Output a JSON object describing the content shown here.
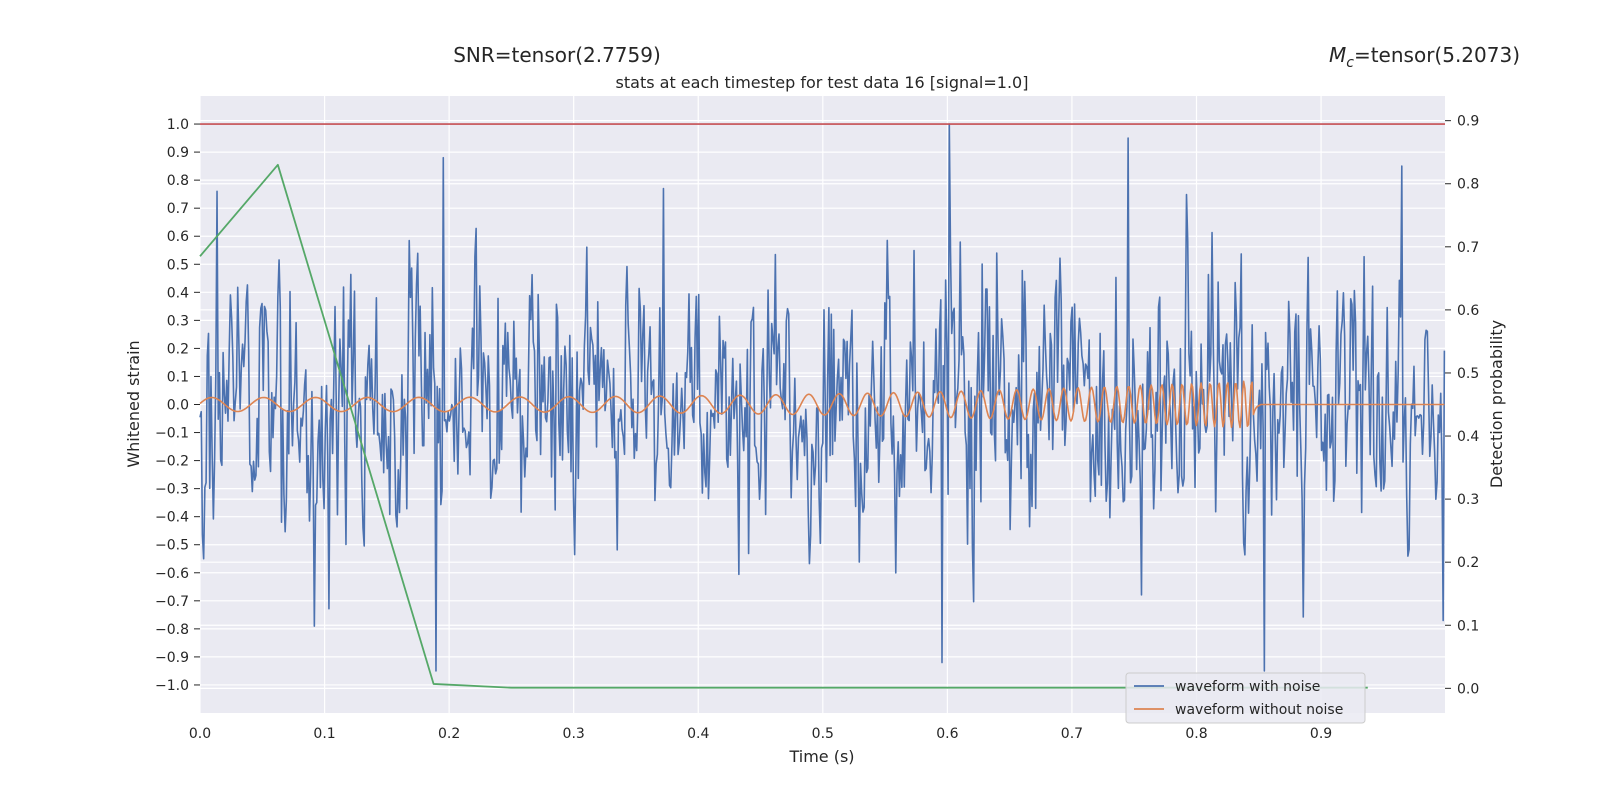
{
  "chart_data": {
    "type": "line",
    "header_left": "SNR=tensor(2.7759)",
    "header_right_symbol": "M",
    "header_right_sub": "c",
    "header_right_value": "=tensor(5.2073)",
    "title": "stats at each timestep for test data 16 [signal=1.0]",
    "xlabel": "Time (s)",
    "ylabel": "Whitened strain",
    "ylabel_right": "Detection probability",
    "xlim": [
      0,
      0.9995
    ],
    "ylim": [
      -1.1,
      1.1
    ],
    "ylim_right": [
      -0.0391,
      0.9391
    ],
    "x_ticks": [
      "0.0",
      "0.1",
      "0.2",
      "0.3",
      "0.4",
      "0.5",
      "0.6",
      "0.7",
      "0.8",
      "0.9"
    ],
    "y_ticks": [
      "1.0",
      "0.9",
      "0.8",
      "0.7",
      "0.6",
      "0.5",
      "0.4",
      "0.3",
      "0.2",
      "0.1",
      "0.0",
      "−0.1",
      "−0.2",
      "−0.3",
      "−0.4",
      "−0.5",
      "−0.6",
      "−0.7",
      "−0.8",
      "−0.9",
      "−1.0"
    ],
    "y_ticks_right": [
      "0.9",
      "0.8",
      "0.7",
      "0.6",
      "0.5",
      "0.4",
      "0.3",
      "0.2",
      "0.1",
      "0.0"
    ],
    "grid": true,
    "legend_position": "bottom-right",
    "colors": {
      "background": "#eaeaf2",
      "grid": "#ffffff",
      "noisy": "#4c72b0",
      "clean": "#dd8452",
      "probability": "#55a868",
      "threshold": "#c44e52"
    },
    "series": [
      {
        "name": "waveform with noise",
        "axis": "left",
        "sample_count": 1024,
        "x_range": [
          0,
          0.999
        ],
        "amplitude_std": 0.33,
        "marked_peaks": [
          {
            "x": 0.003,
            "y": -0.55
          },
          {
            "x": 0.014,
            "y": 0.76
          },
          {
            "x": 0.092,
            "y": -0.79
          },
          {
            "x": 0.189,
            "y": -0.95
          },
          {
            "x": 0.195,
            "y": 0.88
          },
          {
            "x": 0.372,
            "y": 0.77
          },
          {
            "x": 0.602,
            "y": 1.0
          },
          {
            "x": 0.596,
            "y": -0.92
          },
          {
            "x": 0.745,
            "y": 0.95
          },
          {
            "x": 0.854,
            "y": -0.95
          },
          {
            "x": 0.965,
            "y": 0.85
          },
          {
            "x": 0.998,
            "y": -0.77
          }
        ]
      },
      {
        "name": "waveform without noise",
        "axis": "left",
        "sample_count": 1024,
        "x_range": [
          0,
          0.999
        ],
        "merger_time": 0.845,
        "start_frequency_hz": 24,
        "end_frequency_hz": 160,
        "start_amplitude": 0.025,
        "peak_amplitude": 0.085
      },
      {
        "name": "",
        "axis": "right",
        "x": [
          0.0,
          0.0625,
          0.1875,
          0.25,
          0.3125,
          0.375,
          0.4375,
          0.5,
          0.5625,
          0.625,
          0.6875,
          0.75,
          0.8125,
          0.875,
          0.9375
        ],
        "values": [
          0.685,
          0.83,
          0.007,
          0.001,
          0.001,
          0.001,
          0.001,
          0.001,
          0.001,
          0.001,
          0.001,
          0.001,
          0.001,
          0.001,
          0.001
        ]
      }
    ],
    "threshold_line": {
      "axis": "left",
      "y": 1.0
    },
    "legend": [
      {
        "label": "waveform with noise",
        "color": "#4c72b0"
      },
      {
        "label": "waveform without noise",
        "color": "#dd8452"
      }
    ]
  }
}
